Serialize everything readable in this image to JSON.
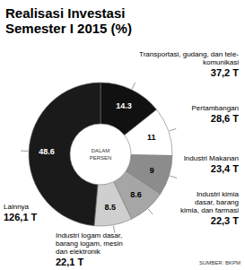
{
  "chart_data": {
    "type": "pie",
    "title": "Realisasi Investasi\nSemester I 2015 (%)",
    "center_text": "DALAM\nPERSEN",
    "categories": [
      "Transportasi, gudang, dan tele-\nkomunikasi",
      "Pertambangan",
      "Industri Makanan",
      "Industri kimia\ndasar, barang\nkimia, dan farmasi",
      "Industri logam dasar,\nbarang logam, mesin\ndan elektronik",
      "Lainnya"
    ],
    "values": [
      14.3,
      11,
      9,
      8.6,
      8.5,
      48.6
    ],
    "amount_labels": [
      "37,2 T",
      "28,6 T",
      "23,4 T",
      "22,3 T",
      "22,1 T",
      "126,1 T"
    ],
    "colors": [
      "#111111",
      "#ffffff",
      "#8c8c8c",
      "#a6a6a6",
      "#cfcfcf",
      "#1a1a1a"
    ],
    "data_labels": true,
    "source": "SUMBER: BKPM"
  }
}
